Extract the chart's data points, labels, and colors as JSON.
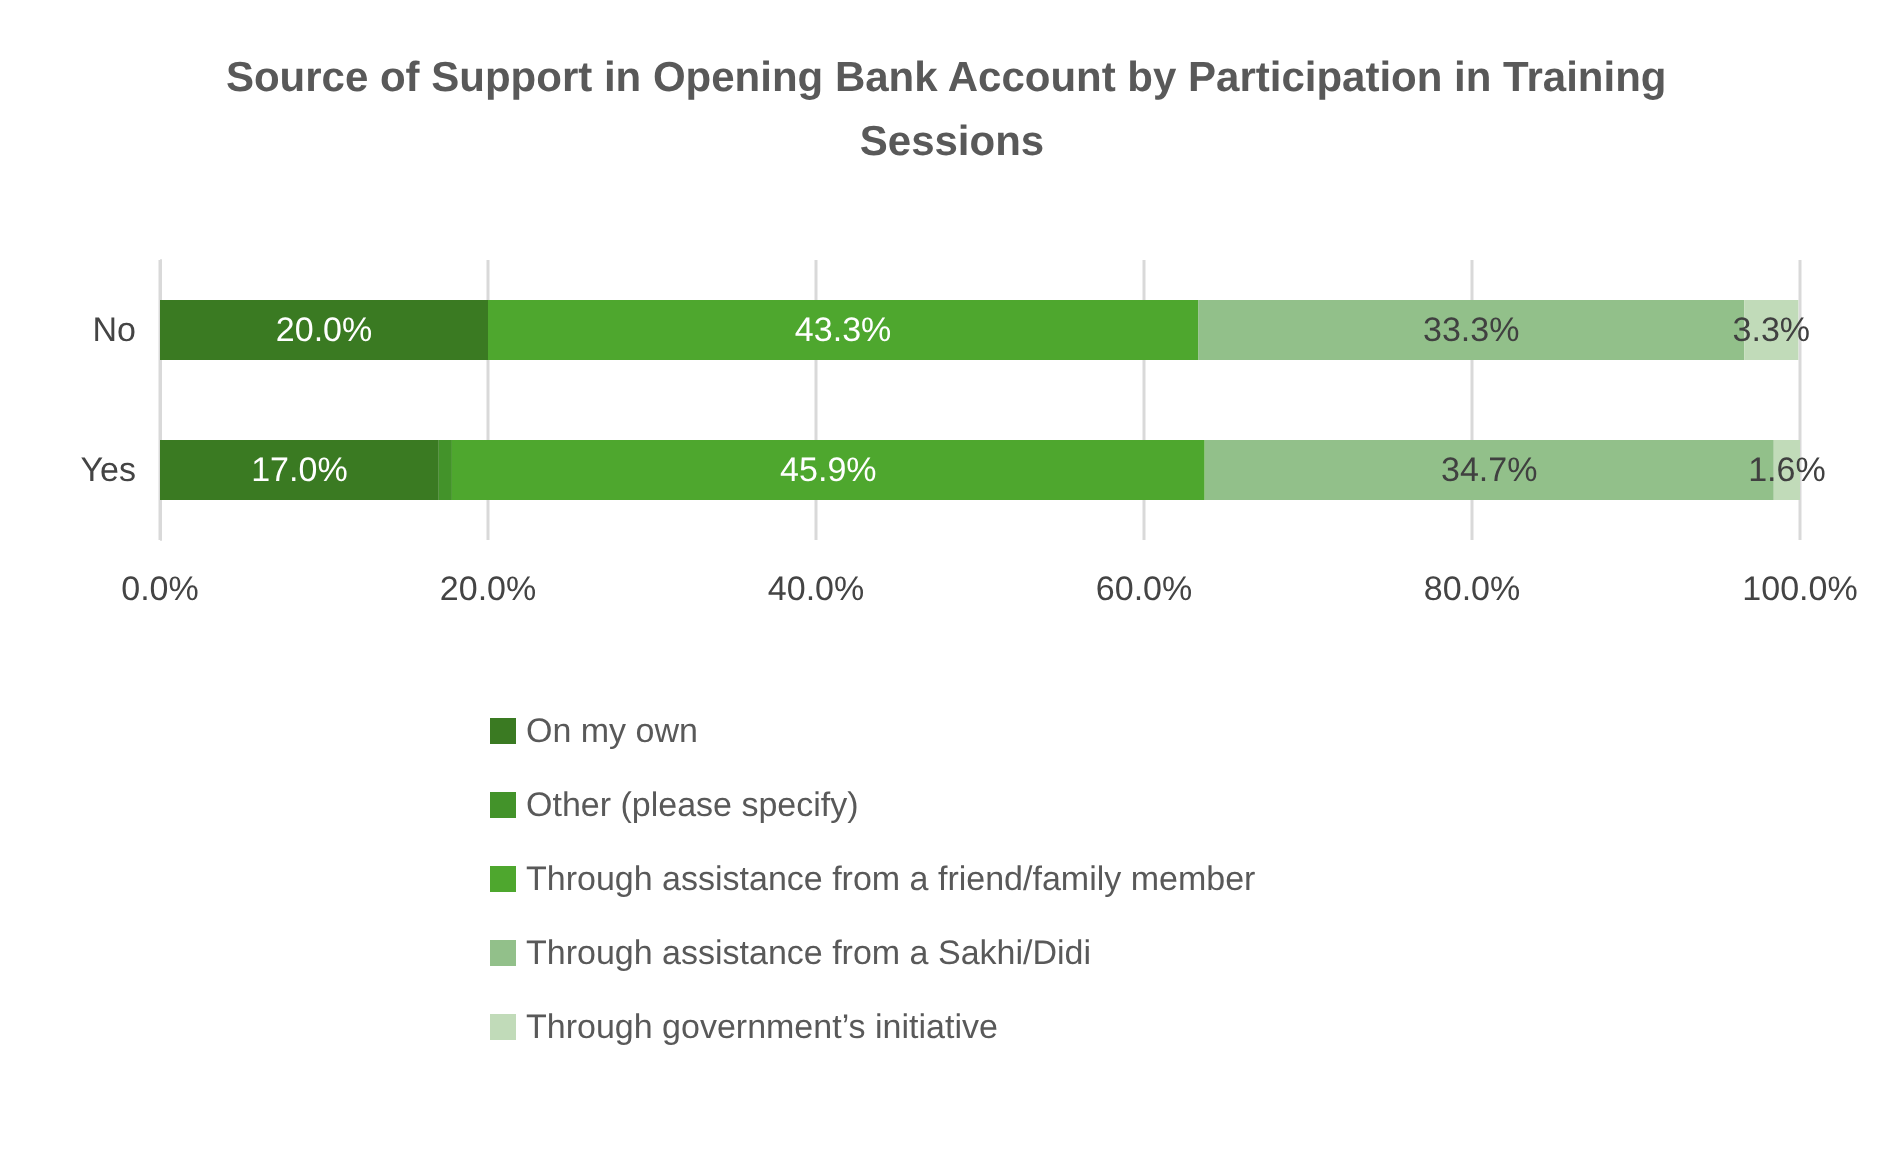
{
  "chart_data": {
    "type": "bar",
    "orientation": "horizontal",
    "stacked": true,
    "title": "Source of Support in Opening Bank Account by Participation in Training Sessions",
    "categories": [
      "No",
      "Yes"
    ],
    "series": [
      {
        "name": "On my own",
        "color": "#3a7a22",
        "values": [
          20.0,
          17.0
        ],
        "value_labels": [
          "20.0%",
          "17.0%"
        ]
      },
      {
        "name": "Other (please specify)",
        "color": "#43932a",
        "values": [
          null,
          0.8
        ],
        "value_labels": [
          null,
          null
        ]
      },
      {
        "name": "Through assistance from a friend/family member",
        "color": "#4ea72e",
        "values": [
          43.3,
          45.9
        ],
        "value_labels": [
          "43.3%",
          "45.9%"
        ]
      },
      {
        "name": "Through assistance from a Sakhi/Didi",
        "color": "#92c08a",
        "values": [
          33.3,
          34.7
        ],
        "value_labels": [
          "33.3%",
          "34.7%"
        ]
      },
      {
        "name": "Through government’s initiative",
        "color": "#c1dbb9",
        "values": [
          3.3,
          1.6
        ],
        "value_labels": [
          "3.3%",
          "1.6%"
        ]
      }
    ],
    "xlim": [
      0,
      100
    ],
    "xticks": [
      {
        "value": 0,
        "label": "0.0%"
      },
      {
        "value": 20,
        "label": "20.0%"
      },
      {
        "value": 40,
        "label": "40.0%"
      },
      {
        "value": 60,
        "label": "60.0%"
      },
      {
        "value": 80,
        "label": "80.0%"
      },
      {
        "value": 100,
        "label": "100.0%"
      }
    ],
    "grid": "x",
    "legend": "bottom"
  }
}
